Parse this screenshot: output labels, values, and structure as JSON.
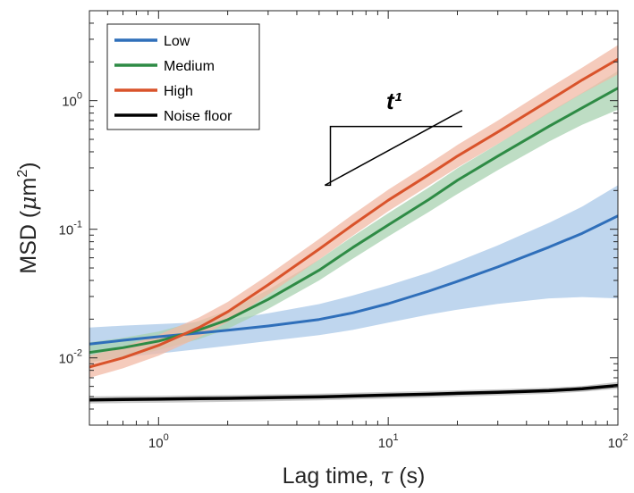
{
  "chart_data": {
    "type": "line",
    "x_scale": "log",
    "y_scale": "log",
    "xlabel": {
      "main": "Lag time, ",
      "symbol": "τ",
      "unit": " (s)"
    },
    "ylabel": {
      "main": "MSD (",
      "symbol": "μ",
      "unit": "m",
      "exp": "2",
      "close": ")"
    },
    "xlim": [
      0.5,
      100
    ],
    "ylim": [
      0.003,
      5
    ],
    "x_ticks": [
      {
        "value": 1,
        "base": "10",
        "exp": "0"
      },
      {
        "value": 10,
        "base": "10",
        "exp": "1"
      },
      {
        "value": 100,
        "base": "10",
        "exp": "2"
      }
    ],
    "y_ticks": [
      {
        "value": 0.01,
        "base": "10",
        "exp": "-2"
      },
      {
        "value": 0.1,
        "base": "10",
        "exp": "-1"
      },
      {
        "value": 1,
        "base": "10",
        "exp": "0"
      }
    ],
    "grid": false,
    "legend_position": "top-left",
    "x": [
      0.5,
      0.7,
      1,
      1.5,
      2,
      3,
      5,
      7,
      10,
      15,
      20,
      30,
      50,
      70,
      100
    ],
    "series": [
      {
        "name": "Low",
        "color": "#2f6fba",
        "band_color": "#a9c8e8",
        "y": [
          0.0128,
          0.0137,
          0.0146,
          0.0156,
          0.0164,
          0.0177,
          0.0199,
          0.0224,
          0.0264,
          0.033,
          0.0393,
          0.0509,
          0.0725,
          0.093,
          0.127
        ],
        "lower": [
          0.0093,
          0.0101,
          0.0108,
          0.0117,
          0.0124,
          0.0135,
          0.015,
          0.0165,
          0.0188,
          0.0217,
          0.0237,
          0.0263,
          0.029,
          0.0297,
          0.029
        ],
        "upper": [
          0.0172,
          0.0178,
          0.0183,
          0.0189,
          0.0198,
          0.0222,
          0.0262,
          0.0305,
          0.0366,
          0.046,
          0.056,
          0.075,
          0.112,
          0.15,
          0.22
        ]
      },
      {
        "name": "Medium",
        "color": "#2e8b45",
        "band_color": "#a8d2b0",
        "y": [
          0.011,
          0.012,
          0.0135,
          0.0165,
          0.0198,
          0.0285,
          0.048,
          0.072,
          0.108,
          0.17,
          0.24,
          0.37,
          0.63,
          0.88,
          1.25
        ],
        "lower": [
          0.0092,
          0.0101,
          0.0115,
          0.014,
          0.0168,
          0.024,
          0.04,
          0.059,
          0.088,
          0.136,
          0.188,
          0.288,
          0.48,
          0.65,
          0.85
        ],
        "upper": [
          0.0132,
          0.0143,
          0.016,
          0.0194,
          0.0233,
          0.0338,
          0.058,
          0.088,
          0.133,
          0.211,
          0.298,
          0.46,
          0.81,
          1.15,
          1.7
        ]
      },
      {
        "name": "High",
        "color": "#d9532b",
        "band_color": "#f1b9a6",
        "y": [
          0.0085,
          0.01,
          0.0125,
          0.0172,
          0.0228,
          0.037,
          0.07,
          0.108,
          0.168,
          0.265,
          0.37,
          0.57,
          1.0,
          1.45,
          2.1
        ],
        "lower": [
          0.007,
          0.0083,
          0.0104,
          0.0144,
          0.019,
          0.031,
          0.058,
          0.089,
          0.138,
          0.218,
          0.302,
          0.46,
          0.8,
          1.14,
          1.6
        ],
        "upper": [
          0.0104,
          0.0122,
          0.0151,
          0.0206,
          0.0272,
          0.044,
          0.084,
          0.13,
          0.203,
          0.322,
          0.452,
          0.7,
          1.25,
          1.81,
          2.7
        ]
      },
      {
        "name": "Noise floor",
        "color": "#000000",
        "band_color": "#b8b8b8",
        "y": [
          0.00472,
          0.00475,
          0.00478,
          0.00482,
          0.00485,
          0.0049,
          0.00497,
          0.00505,
          0.00513,
          0.00522,
          0.0053,
          0.0054,
          0.00556,
          0.00575,
          0.0061
        ],
        "lower": [
          0.00442,
          0.00445,
          0.00448,
          0.00452,
          0.00455,
          0.0046,
          0.00467,
          0.00475,
          0.00483,
          0.00492,
          0.005,
          0.0051,
          0.00526,
          0.00545,
          0.00575
        ],
        "upper": [
          0.00502,
          0.00505,
          0.00508,
          0.00512,
          0.00515,
          0.0052,
          0.00527,
          0.00535,
          0.00543,
          0.00552,
          0.0056,
          0.0057,
          0.00586,
          0.00605,
          0.0065
        ]
      }
    ],
    "annotation": {
      "label": "t¹",
      "description_slope": 1,
      "corner": [
        5.6,
        0.63
      ],
      "top_end": [
        21,
        0.63
      ],
      "bottom_start": [
        5.3,
        0.22
      ],
      "line_end": [
        21,
        0.84
      ]
    }
  }
}
